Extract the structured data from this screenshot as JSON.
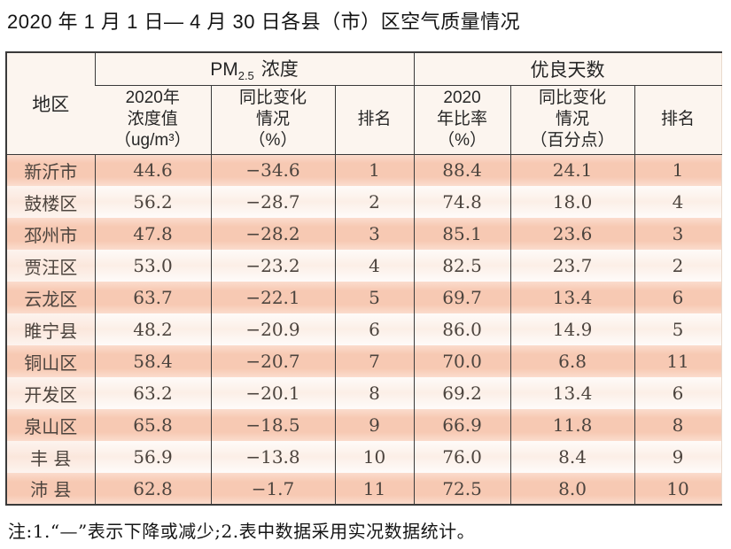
{
  "title": "2020 年 1 月 1 日— 4 月 30 日各县（市）区空气质量情况",
  "table": {
    "region_header": "地区",
    "pm25_group": {
      "prefix": "PM",
      "sub": "2.5",
      "suffix": "浓度"
    },
    "good_days_group": "优良天数",
    "sub_headers": {
      "pm_value": "2020年\n浓度值\n（ug/m³）",
      "pm_change": "同比变化\n情况\n（%）",
      "pm_rank": "排名",
      "gd_ratio": "2020\n年比率\n（%）",
      "gd_change": "同比变化\n情况\n（百分点）",
      "gd_rank": "排名"
    },
    "rows": [
      {
        "region": "新沂市",
        "pm_value": "44.6",
        "pm_change": "−34.6",
        "pm_rank": "1",
        "gd_ratio": "88.4",
        "gd_change": "24.1",
        "gd_rank": "1"
      },
      {
        "region": "鼓楼区",
        "pm_value": "56.2",
        "pm_change": "−28.7",
        "pm_rank": "2",
        "gd_ratio": "74.8",
        "gd_change": "18.0",
        "gd_rank": "4"
      },
      {
        "region": "邳州市",
        "pm_value": "47.8",
        "pm_change": "−28.2",
        "pm_rank": "3",
        "gd_ratio": "85.1",
        "gd_change": "23.6",
        "gd_rank": "3"
      },
      {
        "region": "贾汪区",
        "pm_value": "53.0",
        "pm_change": "−23.2",
        "pm_rank": "4",
        "gd_ratio": "82.5",
        "gd_change": "23.7",
        "gd_rank": "2"
      },
      {
        "region": "云龙区",
        "pm_value": "63.7",
        "pm_change": "−22.1",
        "pm_rank": "5",
        "gd_ratio": "69.7",
        "gd_change": "13.4",
        "gd_rank": "6"
      },
      {
        "region": "睢宁县",
        "pm_value": "48.2",
        "pm_change": "−20.9",
        "pm_rank": "6",
        "gd_ratio": "86.0",
        "gd_change": "14.9",
        "gd_rank": "5"
      },
      {
        "region": "铜山区",
        "pm_value": "58.4",
        "pm_change": "−20.7",
        "pm_rank": "7",
        "gd_ratio": "70.0",
        "gd_change": "6.8",
        "gd_rank": "11"
      },
      {
        "region": "开发区",
        "pm_value": "63.2",
        "pm_change": "−20.1",
        "pm_rank": "8",
        "gd_ratio": "69.2",
        "gd_change": "13.4",
        "gd_rank": "6"
      },
      {
        "region": "泉山区",
        "pm_value": "65.8",
        "pm_change": "−18.5",
        "pm_rank": "9",
        "gd_ratio": "66.9",
        "gd_change": "11.8",
        "gd_rank": "8"
      },
      {
        "region": "丰 县",
        "pm_value": "56.9",
        "pm_change": "−13.8",
        "pm_rank": "10",
        "gd_ratio": "76.0",
        "gd_change": "8.4",
        "gd_rank": "9"
      },
      {
        "region": "沛 县",
        "pm_value": "62.8",
        "pm_change": "−1.7",
        "pm_rank": "11",
        "gd_ratio": "72.5",
        "gd_change": "8.0",
        "gd_rank": "10"
      }
    ]
  },
  "footnote": "注:1.“—”表示下降或减少;2.表中数据采用实况数据统计。",
  "colors": {
    "row_stripe_dark": "#f7c9b3",
    "row_stripe_light": "#fcefe7",
    "header_background": "#fcf5ef",
    "table_border": "#3a3a3a",
    "title_text": "#141414",
    "data_text": "#4c443e"
  }
}
